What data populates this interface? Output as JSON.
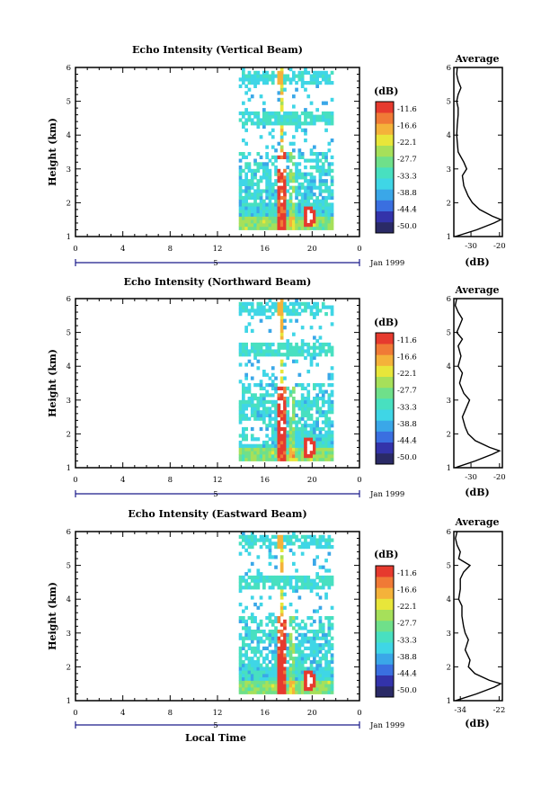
{
  "colors": {
    "palette": [
      "#2a2a66",
      "#3333aa",
      "#3a6fe0",
      "#3aa7e8",
      "#3fd6e6",
      "#48e0c0",
      "#6fe08a",
      "#a6e05a",
      "#e8e63a",
      "#f4b23a",
      "#f07a36",
      "#e63a2e"
    ],
    "background": "#ffffff",
    "line": "#000000"
  },
  "figure": {
    "ylabel": "Height (km)",
    "xlabel": "Local Time",
    "date_label": "Jan 1999",
    "day_marker": "5",
    "colorbar_unit": "(dB)",
    "colorbar_ticks": [
      "-11.6",
      "-16.6",
      "-22.1",
      "-27.7",
      "-33.3",
      "-38.8",
      "-44.4",
      "-50.0"
    ],
    "avg_title": "Average",
    "avg_xlabel": "(dB)"
  },
  "chart_data": [
    {
      "type": "heatmap",
      "title": "Echo Intensity (Vertical Beam)",
      "xlabel": "Local Time",
      "ylabel": "Height (km)",
      "x_ticks": [
        "0",
        "4",
        "8",
        "12",
        "16",
        "20",
        "0"
      ],
      "y_ticks": [
        "1",
        "2",
        "3",
        "4",
        "5",
        "6"
      ],
      "xlim": [
        0,
        24
      ],
      "ylim": [
        1,
        6
      ],
      "data_time_range": [
        13.8,
        21.8
      ],
      "colorbar": {
        "label": "(dB)",
        "ticks": [
          -11.6,
          -16.6,
          -22.1,
          -27.7,
          -33.3,
          -38.8,
          -44.4,
          -50.0
        ]
      },
      "average_profile": {
        "type": "line",
        "title": "Average",
        "xlabel": "(dB)",
        "x_ticks": [
          "-30",
          "-20"
        ],
        "xlim": [
          -36,
          -19
        ],
        "ylim": [
          1,
          6
        ],
        "heights": [
          1.0,
          1.2,
          1.4,
          1.5,
          1.6,
          1.8,
          2.0,
          2.2,
          2.5,
          2.8,
          3.0,
          3.2,
          3.5,
          3.8,
          4.0,
          4.3,
          4.6,
          4.8,
          5.0,
          5.2,
          5.4,
          5.6,
          5.8,
          6.0
        ],
        "values": [
          -35.5,
          -28,
          -22,
          -19.5,
          -22.5,
          -27,
          -29.5,
          -31,
          -32.5,
          -33,
          -31.5,
          -32.5,
          -34.5,
          -34.8,
          -35,
          -34.8,
          -34.5,
          -34.5,
          -35,
          -34.5,
          -33.5,
          -34.5,
          -35,
          -34.8
        ]
      }
    },
    {
      "type": "heatmap",
      "title": "Echo Intensity (Northward Beam)",
      "xlabel": "Local Time",
      "ylabel": "Height (km)",
      "x_ticks": [
        "0",
        "4",
        "8",
        "12",
        "16",
        "20",
        "0"
      ],
      "y_ticks": [
        "1",
        "2",
        "3",
        "4",
        "5",
        "6"
      ],
      "xlim": [
        0,
        24
      ],
      "ylim": [
        1,
        6
      ],
      "data_time_range": [
        13.8,
        21.8
      ],
      "colorbar": {
        "label": "(dB)",
        "ticks": [
          -11.6,
          -16.6,
          -22.1,
          -27.7,
          -33.3,
          -38.8,
          -44.4,
          -50.0
        ]
      },
      "average_profile": {
        "type": "line",
        "title": "Average",
        "xlabel": "(dB)",
        "x_ticks": [
          "-30",
          "-20"
        ],
        "xlim": [
          -36,
          -19
        ],
        "ylim": [
          1,
          6
        ],
        "heights": [
          1.0,
          1.2,
          1.4,
          1.5,
          1.6,
          1.8,
          2.0,
          2.2,
          2.5,
          2.8,
          3.0,
          3.2,
          3.5,
          3.8,
          4.0,
          4.3,
          4.6,
          4.8,
          5.0,
          5.2,
          5.4,
          5.6,
          5.8,
          6.0
        ],
        "values": [
          -35.5,
          -28.5,
          -22.5,
          -20,
          -23.5,
          -28.5,
          -31,
          -32,
          -33,
          -31.5,
          -30.5,
          -32.5,
          -34,
          -33,
          -34.5,
          -33.5,
          -34.5,
          -33,
          -35,
          -34,
          -33,
          -34.5,
          -35.5,
          -35
        ]
      }
    },
    {
      "type": "heatmap",
      "title": "Echo Intensity (Eastward Beam)",
      "xlabel": "Local Time",
      "ylabel": "Height (km)",
      "x_ticks": [
        "0",
        "4",
        "8",
        "12",
        "16",
        "20",
        "0"
      ],
      "y_ticks": [
        "1",
        "2",
        "3",
        "4",
        "5",
        "6"
      ],
      "xlim": [
        0,
        24
      ],
      "ylim": [
        1,
        6
      ],
      "data_time_range": [
        13.8,
        21.8
      ],
      "colorbar": {
        "label": "(dB)",
        "ticks": [
          -11.6,
          -16.6,
          -22.1,
          -27.7,
          -33.3,
          -38.8,
          -44.4,
          -50.0
        ]
      },
      "average_profile": {
        "type": "line",
        "title": "Average",
        "xlabel": "(dB)",
        "x_ticks": [
          "-34",
          "-22"
        ],
        "xlim": [
          -36,
          -21
        ],
        "ylim": [
          1,
          6
        ],
        "heights": [
          1.0,
          1.2,
          1.4,
          1.5,
          1.6,
          1.8,
          2.0,
          2.2,
          2.5,
          2.8,
          3.0,
          3.2,
          3.5,
          3.8,
          4.0,
          4.3,
          4.6,
          4.8,
          5.0,
          5.2,
          5.4,
          5.6,
          5.8,
          6.0
        ],
        "values": [
          -35.5,
          -29,
          -23.5,
          -21.5,
          -25,
          -29.5,
          -31.5,
          -31,
          -32.5,
          -31.5,
          -32.5,
          -33,
          -33.5,
          -33.5,
          -34.5,
          -34,
          -34,
          -33,
          -31,
          -34.5,
          -34,
          -35,
          -35.5,
          -35
        ]
      }
    }
  ]
}
